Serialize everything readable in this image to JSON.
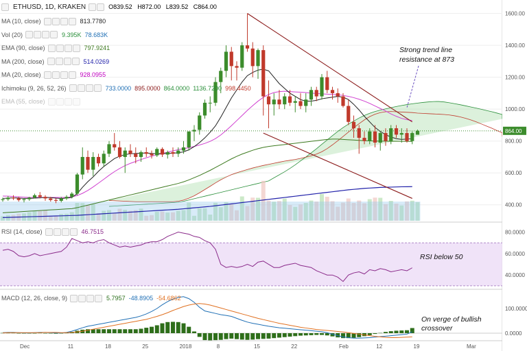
{
  "header": {
    "symbol": "ETHUSD, 1D, KRAKEN",
    "ohlc": [
      "O839.52",
      "H872.00",
      "L839.52",
      "C864.00"
    ]
  },
  "indicators": [
    {
      "name": "MA (10, close)",
      "values": [
        {
          "v": "813.7780",
          "color": "#222222"
        }
      ]
    },
    {
      "name": "Vol (20)",
      "values": [
        {
          "v": "9.395K",
          "color": "#2a8f3a"
        },
        {
          "v": "78.683K",
          "color": "#1f6fb5"
        }
      ]
    },
    {
      "name": "EMA (90, close)",
      "values": [
        {
          "v": "797.9241",
          "color": "#3d7a1f"
        }
      ]
    },
    {
      "name": "MA (200, close)",
      "values": [
        {
          "v": "514.0269",
          "color": "#2222aa"
        }
      ]
    },
    {
      "name": "MA (20, close)",
      "values": [
        {
          "v": "928.0955",
          "color": "#c000c0"
        }
      ]
    },
    {
      "name": "Ichimoku (9, 26, 52, 26)",
      "values": [
        {
          "v": "733.0000",
          "color": "#1f6fb5"
        },
        {
          "v": "895.0000",
          "color": "#8b1a1a"
        },
        {
          "v": "864.0000",
          "color": "#2a8f3a"
        },
        {
          "v": "1136.7200",
          "color": "#2a8f3a"
        },
        {
          "v": "998.4450",
          "color": "#c0392b"
        }
      ]
    },
    {
      "name": "EMA (55, close)",
      "values": [],
      "faded": true
    }
  ],
  "rsi_label": "RSI (14, close)",
  "rsi_value": "46.7515",
  "macd_label": "MACD (12, 26, close, 9)",
  "macd_values": [
    {
      "v": "5.7957",
      "color": "#2a6e1a"
    },
    {
      "v": "-48.8905",
      "color": "#1f6fb5"
    },
    {
      "v": "-54.6862",
      "color": "#e07020"
    }
  ],
  "price_tag": "864.00",
  "annotations": {
    "trendline": [
      "Strong trend line",
      "resistance at 873"
    ],
    "rsi": [
      "RSI below 50"
    ],
    "macd": [
      "On verge of bullish",
      "crossover"
    ]
  },
  "axes": {
    "price_ticks": [
      "1600.00",
      "1400.00",
      "1200.00",
      "1000.00",
      "800.00",
      "600.00",
      "400.00"
    ],
    "rsi_ticks": [
      "80.0000",
      "60.0000",
      "40.0000"
    ],
    "macd_ticks": [
      "100.0000",
      "0.0000"
    ],
    "date_ticks": [
      "Dec",
      "11",
      "18",
      "25",
      "2018",
      "8",
      "15",
      "22",
      "Feb",
      "12",
      "19",
      "Mar"
    ]
  },
  "colors": {
    "up": "#3c8c2c",
    "down": "#c0392b",
    "grid": "#eeeeee"
  },
  "chart_data": {
    "type": "line",
    "ohlc_last": {
      "open": 839.52,
      "high": 872.0,
      "low": 839.52,
      "close": 864.0
    },
    "price_ylim": [
      300,
      1650
    ],
    "candles": [
      [
        430,
        445,
        420,
        435
      ],
      [
        435,
        455,
        425,
        445
      ],
      [
        445,
        460,
        430,
        440
      ],
      [
        440,
        450,
        420,
        430
      ],
      [
        430,
        440,
        415,
        435
      ],
      [
        435,
        450,
        425,
        445
      ],
      [
        445,
        470,
        440,
        460
      ],
      [
        460,
        480,
        440,
        450
      ],
      [
        450,
        460,
        425,
        440
      ],
      [
        440,
        450,
        420,
        430
      ],
      [
        430,
        440,
        410,
        425
      ],
      [
        425,
        450,
        415,
        440
      ],
      [
        440,
        460,
        430,
        450
      ],
      [
        450,
        480,
        440,
        470
      ],
      [
        470,
        600,
        460,
        590
      ],
      [
        590,
        760,
        560,
        700
      ],
      [
        700,
        740,
        600,
        620
      ],
      [
        620,
        730,
        580,
        700
      ],
      [
        700,
        720,
        640,
        660
      ],
      [
        660,
        740,
        640,
        720
      ],
      [
        720,
        800,
        700,
        780
      ],
      [
        780,
        850,
        740,
        760
      ],
      [
        760,
        800,
        690,
        700
      ],
      [
        700,
        760,
        600,
        740
      ],
      [
        740,
        780,
        700,
        720
      ],
      [
        720,
        760,
        660,
        700
      ],
      [
        700,
        740,
        670,
        730
      ],
      [
        730,
        760,
        700,
        720
      ],
      [
        720,
        740,
        690,
        710
      ],
      [
        710,
        760,
        700,
        750
      ],
      [
        750,
        760,
        700,
        715
      ],
      [
        715,
        740,
        690,
        730
      ],
      [
        730,
        760,
        700,
        720
      ],
      [
        720,
        760,
        700,
        740
      ],
      [
        740,
        800,
        720,
        760
      ],
      [
        760,
        860,
        740,
        860
      ],
      [
        860,
        900,
        800,
        870
      ],
      [
        870,
        980,
        840,
        960
      ],
      [
        960,
        1060,
        940,
        1040
      ],
      [
        1040,
        1080,
        980,
        1040
      ],
      [
        1040,
        1200,
        1020,
        1170
      ],
      [
        1170,
        1260,
        1100,
        1240
      ],
      [
        1240,
        1400,
        1200,
        1360
      ],
      [
        1360,
        1390,
        1180,
        1270
      ],
      [
        1270,
        1300,
        1180,
        1260
      ],
      [
        1260,
        1420,
        1240,
        1400
      ],
      [
        1400,
        1600,
        1360,
        1380
      ],
      [
        1380,
        1420,
        1200,
        1270
      ],
      [
        1270,
        1380,
        1190,
        1370
      ],
      [
        1370,
        1400,
        960,
        1080
      ],
      [
        1080,
        1180,
        880,
        1030
      ],
      [
        1030,
        1100,
        960,
        1060
      ],
      [
        1060,
        1120,
        1000,
        1030
      ],
      [
        1030,
        1100,
        1000,
        1080
      ],
      [
        1080,
        1120,
        1020,
        1040
      ],
      [
        1040,
        1080,
        980,
        1050
      ],
      [
        1050,
        1100,
        1000,
        1020
      ],
      [
        1020,
        1100,
        980,
        1060
      ],
      [
        1060,
        1140,
        1020,
        1120
      ],
      [
        1120,
        1140,
        1050,
        1080
      ],
      [
        1080,
        1220,
        1060,
        1200
      ],
      [
        1200,
        1240,
        1100,
        1120
      ],
      [
        1120,
        1140,
        1060,
        1100
      ],
      [
        1100,
        1130,
        1040,
        1080
      ],
      [
        1080,
        1100,
        1010,
        1020
      ],
      [
        1020,
        1060,
        900,
        920
      ],
      [
        920,
        960,
        820,
        880
      ],
      [
        880,
        900,
        720,
        820
      ],
      [
        820,
        860,
        780,
        800
      ],
      [
        800,
        880,
        780,
        860
      ],
      [
        860,
        900,
        760,
        790
      ],
      [
        790,
        860,
        740,
        850
      ],
      [
        850,
        880,
        770,
        800
      ],
      [
        800,
        900,
        780,
        880
      ],
      [
        880,
        900,
        820,
        840
      ],
      [
        840,
        880,
        790,
        850
      ],
      [
        850,
        880,
        790,
        800
      ],
      [
        800,
        860,
        780,
        850
      ],
      [
        839.52,
        872,
        839.52,
        864
      ]
    ],
    "rsi_ylim": [
      28,
      88
    ],
    "rsi": [
      63,
      64,
      62,
      58,
      57,
      58,
      60,
      58,
      59,
      60,
      61,
      62,
      66,
      74,
      72,
      70,
      71,
      70,
      72,
      73,
      70,
      68,
      66,
      67,
      66,
      67,
      68,
      70,
      71,
      71,
      73,
      76,
      78,
      80,
      79,
      78,
      76,
      75,
      72,
      70,
      64,
      50,
      47,
      48,
      47,
      48,
      50,
      48,
      52,
      53,
      50,
      47,
      47,
      49,
      50,
      51,
      49,
      48,
      47,
      44,
      42,
      40,
      40,
      38,
      34,
      40,
      42,
      43,
      41,
      45,
      44,
      46,
      45,
      43,
      44,
      45,
      44,
      46.75
    ],
    "macd_ylim": [
      -25,
      175
    ],
    "macd": [
      2,
      3,
      3,
      2,
      1,
      1,
      2,
      3,
      3,
      2,
      1,
      1,
      3,
      8,
      15,
      22,
      28,
      32,
      36,
      40,
      44,
      48,
      52,
      56,
      60,
      64,
      70,
      78,
      88,
      100,
      115,
      128,
      138,
      145,
      148,
      140,
      125,
      105,
      90,
      85,
      80,
      75,
      72,
      68,
      60,
      52,
      45,
      40,
      36,
      32,
      28,
      25,
      22,
      20,
      18,
      16,
      14,
      12,
      10,
      8,
      6,
      2,
      -4,
      -10,
      -15,
      -18,
      -20,
      -20,
      -19,
      -18,
      -16,
      -14,
      -12,
      -10,
      -8,
      -6,
      -4,
      5.8
    ],
    "signal": [
      1,
      2,
      2,
      2,
      2,
      2,
      2,
      2,
      3,
      3,
      3,
      2,
      2,
      3,
      5,
      8,
      12,
      16,
      20,
      24,
      28,
      32,
      36,
      40,
      44,
      48,
      52,
      56,
      62,
      68,
      75,
      83,
      92,
      100,
      108,
      114,
      118,
      120,
      118,
      114,
      108,
      102,
      96,
      90,
      84,
      78,
      72,
      66,
      60,
      55,
      50,
      45,
      40,
      36,
      32,
      28,
      24,
      21,
      18,
      15,
      13,
      11,
      9,
      7,
      5,
      2,
      -1,
      -4,
      -7,
      -10,
      -13,
      -15,
      -17,
      -18,
      -18,
      -17,
      -16,
      -15
    ],
    "ma10": [
      440,
      442,
      444,
      442,
      440,
      440,
      442,
      444,
      446,
      445,
      442,
      440,
      442,
      446,
      470,
      510,
      545,
      575,
      610,
      640,
      665,
      690,
      705,
      715,
      720,
      722,
      724,
      725,
      722,
      720,
      722,
      722,
      724,
      726,
      732,
      745,
      765,
      790,
      820,
      855,
      895,
      950,
      1010,
      1070,
      1120,
      1170,
      1210,
      1230,
      1245,
      1250,
      1240,
      1200,
      1160,
      1130,
      1100,
      1080,
      1060,
      1050,
      1050,
      1055,
      1065,
      1070,
      1075,
      1080,
      1075,
      1060,
      1030,
      995,
      955,
      920,
      885,
      860,
      840,
      825,
      815,
      810,
      812,
      813.78
    ],
    "ma20": [
      455,
      454,
      452,
      450,
      448,
      446,
      446,
      446,
      446,
      446,
      446,
      446,
      446,
      450,
      458,
      472,
      490,
      512,
      536,
      560,
      585,
      608,
      628,
      646,
      660,
      672,
      684,
      695,
      705,
      714,
      722,
      730,
      738,
      746,
      752,
      758,
      766,
      775,
      785,
      798,
      815,
      838,
      866,
      896,
      928,
      960,
      992,
      1022,
      1050,
      1074,
      1092,
      1104,
      1110,
      1112,
      1110,
      1108,
      1106,
      1104,
      1100,
      1098,
      1096,
      1094,
      1092,
      1090,
      1086,
      1080,
      1072,
      1062,
      1050,
      1036,
      1020,
      1004,
      988,
      970,
      955,
      942,
      934,
      928.1
    ],
    "ema90": [
      350,
      352,
      354,
      356,
      358,
      360,
      362,
      364,
      366,
      368,
      370,
      372,
      374,
      376,
      382,
      390,
      398,
      406,
      414,
      422,
      430,
      438,
      446,
      454,
      462,
      470,
      478,
      486,
      494,
      502,
      510,
      518,
      526,
      534,
      544,
      556,
      570,
      584,
      600,
      616,
      634,
      652,
      670,
      688,
      704,
      718,
      730,
      742,
      752,
      760,
      766,
      770,
      774,
      778,
      782,
      786,
      790,
      794,
      798,
      802,
      806,
      810,
      812,
      812,
      810,
      808,
      806,
      804,
      802,
      801,
      800,
      799,
      799,
      798,
      798,
      798,
      798,
      797.9
    ],
    "ma200": [
      320,
      321,
      322,
      323,
      324,
      325,
      326,
      327,
      328,
      329,
      330,
      331,
      332,
      333,
      334,
      336,
      338,
      340,
      342,
      344,
      346,
      348,
      350,
      352,
      354,
      356,
      358,
      360,
      362,
      364,
      366,
      368,
      370,
      372,
      375,
      378,
      381,
      384,
      387,
      390,
      394,
      398,
      402,
      406,
      410,
      414,
      418,
      422,
      426,
      430,
      434,
      438,
      442,
      446,
      450,
      454,
      458,
      462,
      466,
      470,
      474,
      478,
      482,
      486,
      490,
      494,
      497,
      500,
      503,
      505,
      507,
      509,
      510,
      511,
      512,
      513,
      513.5,
      514.03
    ],
    "trendlines": [
      {
        "x0": 46,
        "y0": 1600,
        "x1": 77,
        "y1": 920
      },
      {
        "x0": 49,
        "y0": 850,
        "x1": 77,
        "y1": 440
      }
    ]
  }
}
